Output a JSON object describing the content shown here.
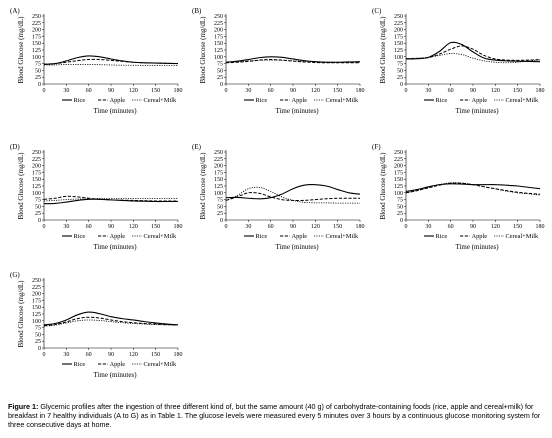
{
  "chart_data": [
    {
      "type": "line",
      "panel_label": "(A)",
      "x": [
        0,
        15,
        30,
        45,
        60,
        75,
        90,
        105,
        120,
        135,
        150,
        165,
        180
      ],
      "ylim": [
        0,
        250
      ],
      "xlim": [
        0,
        180
      ],
      "xticks": [
        0,
        30,
        60,
        90,
        120,
        150,
        180
      ],
      "yticks": [
        0,
        25,
        50,
        75,
        100,
        125,
        150,
        175,
        200,
        225,
        250
      ],
      "xlabel": "Time (minutes)",
      "ylabel": "Blood Glucose (mg/dL)",
      "series": [
        {
          "name": "Rice",
          "values": [
            72,
            75,
            85,
            97,
            103,
            100,
            92,
            85,
            80,
            78,
            77,
            76,
            75
          ]
        },
        {
          "name": "Apple",
          "values": [
            73,
            75,
            80,
            86,
            90,
            90,
            87,
            83,
            80,
            78,
            77,
            76,
            75
          ]
        },
        {
          "name": "Cereal+Milk",
          "values": [
            70,
            70,
            72,
            72,
            72,
            71,
            70,
            69,
            69,
            68,
            68,
            68,
            68
          ]
        }
      ]
    },
    {
      "type": "line",
      "panel_label": "(B)",
      "x": [
        0,
        15,
        30,
        45,
        60,
        75,
        90,
        105,
        120,
        135,
        150,
        165,
        180
      ],
      "ylim": [
        0,
        250
      ],
      "xlim": [
        0,
        180
      ],
      "xticks": [
        0,
        30,
        60,
        90,
        120,
        150,
        180
      ],
      "yticks": [
        0,
        25,
        50,
        75,
        100,
        125,
        150,
        175,
        200,
        225,
        250
      ],
      "xlabel": "Time (minutes)",
      "ylabel": "Blood Glucose (mg/dL)",
      "series": [
        {
          "name": "Rice",
          "values": [
            80,
            84,
            90,
            97,
            100,
            98,
            92,
            86,
            82,
            80,
            80,
            81,
            82
          ]
        },
        {
          "name": "Apple",
          "values": [
            78,
            80,
            83,
            88,
            90,
            88,
            84,
            81,
            79,
            78,
            78,
            78,
            78
          ]
        },
        {
          "name": "Cereal+Milk",
          "values": [
            80,
            82,
            85,
            87,
            88,
            87,
            85,
            83,
            82,
            81,
            80,
            80,
            80
          ]
        }
      ]
    },
    {
      "type": "line",
      "panel_label": "(C)",
      "x": [
        0,
        15,
        30,
        45,
        60,
        75,
        90,
        105,
        120,
        135,
        150,
        165,
        180
      ],
      "ylim": [
        0,
        250
      ],
      "xlim": [
        0,
        180
      ],
      "xticks": [
        0,
        30,
        60,
        90,
        120,
        150,
        180
      ],
      "yticks": [
        0,
        25,
        50,
        75,
        100,
        125,
        150,
        175,
        200,
        225,
        250
      ],
      "xlabel": "Time (minutes)",
      "ylabel": "Blood Glucose (mg/dL)",
      "series": [
        {
          "name": "Rice",
          "values": [
            92,
            93,
            98,
            120,
            152,
            145,
            118,
            95,
            88,
            85,
            84,
            83,
            82
          ]
        },
        {
          "name": "Apple",
          "values": [
            93,
            94,
            97,
            110,
            128,
            140,
            128,
            105,
            92,
            88,
            87,
            88,
            90
          ]
        },
        {
          "name": "Cereal+Milk",
          "values": [
            94,
            95,
            98,
            105,
            112,
            108,
            95,
            85,
            80,
            78,
            80,
            85,
            88
          ]
        }
      ]
    },
    {
      "type": "line",
      "panel_label": "(D)",
      "x": [
        0,
        15,
        30,
        45,
        60,
        75,
        90,
        105,
        120,
        135,
        150,
        165,
        180
      ],
      "ylim": [
        0,
        250
      ],
      "xlim": [
        0,
        180
      ],
      "xticks": [
        0,
        30,
        60,
        90,
        120,
        150,
        180
      ],
      "yticks": [
        0,
        25,
        50,
        75,
        100,
        125,
        150,
        175,
        200,
        225,
        250
      ],
      "xlabel": "Time (minutes)",
      "ylabel": "Blood Glucose (mg/dL)",
      "series": [
        {
          "name": "Rice",
          "values": [
            60,
            61,
            66,
            72,
            76,
            76,
            74,
            72,
            70,
            69,
            68,
            68,
            68
          ]
        },
        {
          "name": "Apple",
          "values": [
            76,
            80,
            87,
            85,
            80,
            76,
            74,
            73,
            72,
            71,
            70,
            70,
            70
          ]
        },
        {
          "name": "Cereal+Milk",
          "values": [
            70,
            72,
            75,
            77,
            78,
            79,
            79,
            79,
            79,
            79,
            79,
            79,
            79
          ]
        }
      ]
    },
    {
      "type": "line",
      "panel_label": "(E)",
      "x": [
        0,
        15,
        30,
        45,
        60,
        75,
        90,
        105,
        120,
        135,
        150,
        165,
        180
      ],
      "ylim": [
        0,
        250
      ],
      "xlim": [
        0,
        180
      ],
      "xticks": [
        0,
        30,
        60,
        90,
        120,
        150,
        180
      ],
      "yticks": [
        0,
        25,
        50,
        75,
        100,
        125,
        150,
        175,
        200,
        225,
        250
      ],
      "xlabel": "Time (minutes)",
      "ylabel": "Blood Glucose (mg/dL)",
      "series": [
        {
          "name": "Rice",
          "values": [
            82,
            83,
            80,
            78,
            82,
            95,
            115,
            128,
            130,
            125,
            112,
            100,
            95
          ]
        },
        {
          "name": "Apple",
          "values": [
            72,
            85,
            100,
            98,
            85,
            75,
            72,
            72,
            75,
            78,
            80,
            80,
            80
          ]
        },
        {
          "name": "Cereal+Milk",
          "values": [
            72,
            90,
            115,
            120,
            105,
            85,
            72,
            65,
            63,
            63,
            62,
            62,
            62
          ]
        }
      ]
    },
    {
      "type": "line",
      "panel_label": "(F)",
      "x": [
        0,
        15,
        30,
        45,
        60,
        75,
        90,
        105,
        120,
        135,
        150,
        165,
        180
      ],
      "ylim": [
        0,
        250
      ],
      "xlim": [
        0,
        180
      ],
      "xticks": [
        0,
        30,
        60,
        90,
        120,
        150,
        180
      ],
      "yticks": [
        0,
        25,
        50,
        75,
        100,
        125,
        150,
        175,
        200,
        225,
        250
      ],
      "xlabel": "Time (minutes)",
      "ylabel": "Blood Glucose (mg/dL)",
      "series": [
        {
          "name": "Rice",
          "values": [
            105,
            112,
            122,
            130,
            133,
            132,
            130,
            130,
            130,
            128,
            125,
            120,
            115
          ]
        },
        {
          "name": "Apple",
          "values": [
            100,
            108,
            118,
            128,
            135,
            135,
            130,
            122,
            115,
            108,
            102,
            98,
            95
          ]
        },
        {
          "name": "Cereal+Milk",
          "values": [
            100,
            108,
            120,
            130,
            137,
            136,
            130,
            122,
            114,
            106,
            100,
            96,
            92
          ]
        }
      ]
    },
    {
      "type": "line",
      "panel_label": "(G)",
      "x": [
        0,
        15,
        30,
        45,
        60,
        75,
        90,
        105,
        120,
        135,
        150,
        165,
        180
      ],
      "ylim": [
        0,
        250
      ],
      "xlim": [
        0,
        180
      ],
      "xticks": [
        0,
        30,
        60,
        90,
        120,
        150,
        180
      ],
      "yticks": [
        0,
        25,
        50,
        75,
        100,
        125,
        150,
        175,
        200,
        225,
        250
      ],
      "xlabel": "Time (minutes)",
      "ylabel": "Blood Glucose (mg/dL)",
      "series": [
        {
          "name": "Rice",
          "values": [
            85,
            90,
            103,
            122,
            132,
            126,
            115,
            108,
            103,
            97,
            92,
            88,
            85
          ]
        },
        {
          "name": "Apple",
          "values": [
            82,
            86,
            96,
            108,
            113,
            110,
            103,
            97,
            93,
            90,
            88,
            86,
            85
          ]
        },
        {
          "name": "Cereal+Milk",
          "values": [
            80,
            84,
            92,
            100,
            103,
            101,
            97,
            93,
            90,
            88,
            86,
            85,
            84
          ]
        }
      ]
    }
  ],
  "caption": {
    "label": "Figure 1:",
    "text": "Glycemic profiles after the ingestion of three different kind of, but the same amount (40 g) of carbohydrate-containing foods (rice, apple and cereal+milk) for breakfast in 7 healthy individuals (A to G) as in Table 1. The glucose levels were measured every 5 minutes over 3 hours by a continuous glucose monitoring system for three consecutive days at home."
  }
}
